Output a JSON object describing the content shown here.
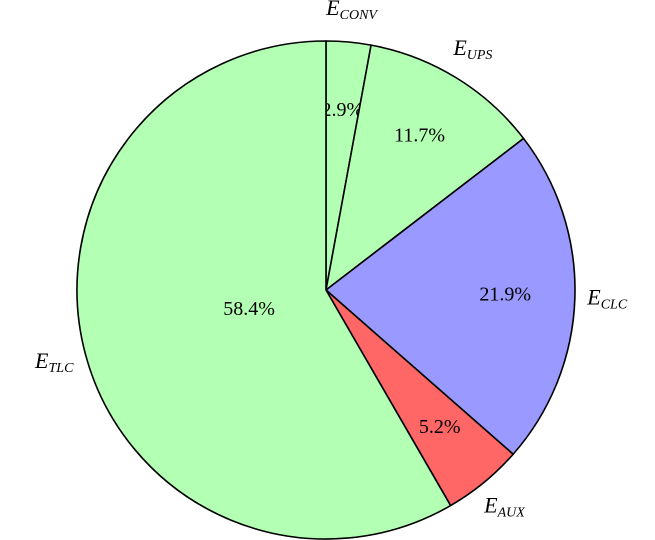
{
  "chart_data": {
    "type": "pie",
    "categories": [
      "ECONV",
      "EUPS",
      "ECLC",
      "EAUX",
      "ETLC"
    ],
    "values": [
      2.9,
      11.7,
      21.9,
      5.2,
      58.4
    ],
    "value_labels": [
      "2.9%",
      "11.7%",
      "21.9%",
      "5.2%",
      "58.4%"
    ],
    "colors": [
      "#b3ffb3",
      "#b3ffb3",
      "#9999ff",
      "#ff6666",
      "#b3ffb3"
    ],
    "start_angle": 90,
    "direction": "clockwise"
  }
}
